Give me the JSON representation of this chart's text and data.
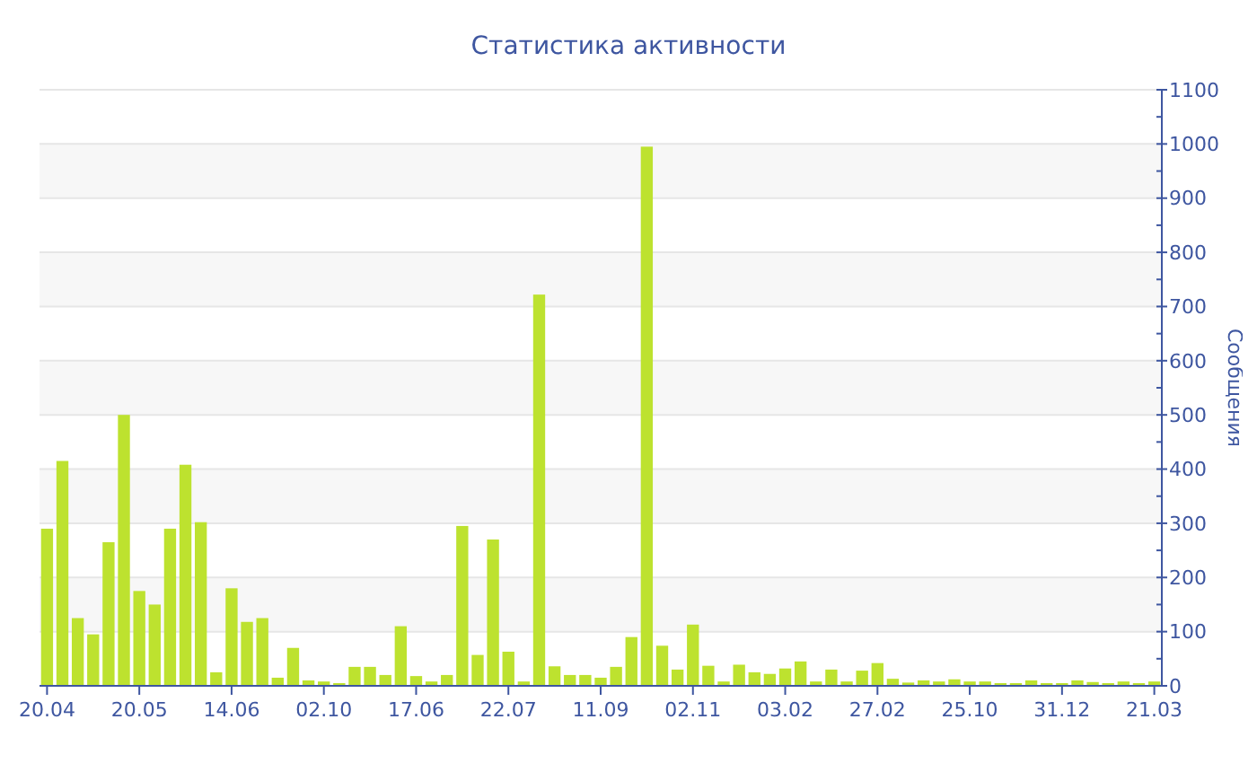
{
  "chart_data": {
    "type": "bar",
    "title": "Статистика активности",
    "ylabel": "Сообщения",
    "categories": [
      "20.04",
      null,
      null,
      null,
      null,
      null,
      "20.05",
      null,
      null,
      null,
      null,
      null,
      "14.06",
      null,
      null,
      null,
      null,
      null,
      "02.10",
      null,
      null,
      null,
      null,
      null,
      "17.06",
      null,
      null,
      null,
      null,
      null,
      "22.07",
      null,
      null,
      null,
      null,
      null,
      "11.09",
      null,
      null,
      null,
      null,
      null,
      "02.11",
      null,
      null,
      null,
      null,
      null,
      "03.02",
      null,
      null,
      null,
      null,
      null,
      "27.02",
      null,
      null,
      null,
      null,
      null,
      "25.10",
      null,
      null,
      null,
      null,
      null,
      "31.12",
      null,
      null,
      null,
      null,
      null,
      "21.03"
    ],
    "values": [
      290,
      415,
      125,
      95,
      265,
      500,
      175,
      150,
      290,
      408,
      302,
      25,
      180,
      118,
      125,
      15,
      70,
      10,
      8,
      5,
      35,
      35,
      20,
      110,
      18,
      8,
      20,
      295,
      57,
      270,
      63,
      8,
      722,
      36,
      20,
      20,
      15,
      35,
      90,
      995,
      74,
      30,
      113,
      37,
      8,
      39,
      25,
      22,
      32,
      45,
      8,
      30,
      8,
      28,
      42,
      13,
      6,
      10,
      8,
      12,
      8,
      8,
      5,
      5,
      10,
      5,
      5,
      10,
      7,
      5,
      8,
      5,
      8
    ],
    "color": "#bde22f",
    "ylim": [
      0,
      1100
    ],
    "yticks": [
      0,
      {
        "value": 50,
        "label": null
      },
      100,
      {
        "value": 150,
        "label": null
      },
      200,
      {
        "value": 250,
        "label": null
      },
      300,
      {
        "value": 350,
        "label": null
      },
      400,
      {
        "value": 450,
        "label": null
      },
      500,
      {
        "value": 550,
        "label": null
      },
      600,
      {
        "value": 650,
        "label": null
      },
      700,
      {
        "value": 750,
        "label": null
      },
      800,
      {
        "value": 850,
        "label": null
      },
      900,
      {
        "value": 950,
        "label": null
      },
      1000,
      {
        "value": 1050,
        "label": null
      },
      1100
    ],
    "grid": "y",
    "bands": [
      {
        "axis": "y",
        "from": 100,
        "to": 200,
        "color": "#f7f7f7"
      },
      {
        "axis": "y",
        "from": 300,
        "to": 400,
        "color": "#f7f7f7"
      },
      {
        "axis": "y",
        "from": 500,
        "to": 600,
        "color": "#f7f7f7"
      },
      {
        "axis": "y",
        "from": 700,
        "to": 800,
        "color": "#f7f7f7"
      },
      {
        "axis": "y",
        "from": 900,
        "to": 1000,
        "color": "#f7f7f7"
      }
    ]
  }
}
